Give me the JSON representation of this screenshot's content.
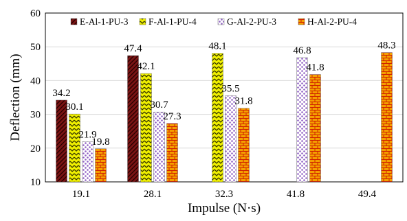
{
  "chart_data": {
    "type": "bar",
    "xlabel": "Impulse (N·s)",
    "ylabel": "Deflection (mm)",
    "ylim": [
      10,
      60
    ],
    "yticks": [
      10,
      20,
      30,
      40,
      50,
      60
    ],
    "grid": true,
    "legend_position": "top",
    "categories": [
      "19.1",
      "28.1",
      "32.3",
      "41.8",
      "49.4"
    ],
    "series": [
      {
        "name": "E-Al-1-PU-3",
        "values": [
          34.2,
          47.4,
          null,
          null,
          null
        ],
        "pattern": "herringbone",
        "color": "#7b1414"
      },
      {
        "name": "F-Al-1-PU-4",
        "values": [
          30.1,
          42.1,
          48.1,
          null,
          null
        ],
        "pattern": "zigzag",
        "color": "#e8e800"
      },
      {
        "name": "G-Al-2-PU-3",
        "values": [
          21.9,
          30.7,
          35.5,
          46.8,
          null
        ],
        "pattern": "dots",
        "color": "#9b73c8"
      },
      {
        "name": "H-Al-2-PU-4",
        "values": [
          19.8,
          27.3,
          31.8,
          41.8,
          48.3
        ],
        "pattern": "bricks",
        "color": "#f28c00"
      }
    ]
  }
}
